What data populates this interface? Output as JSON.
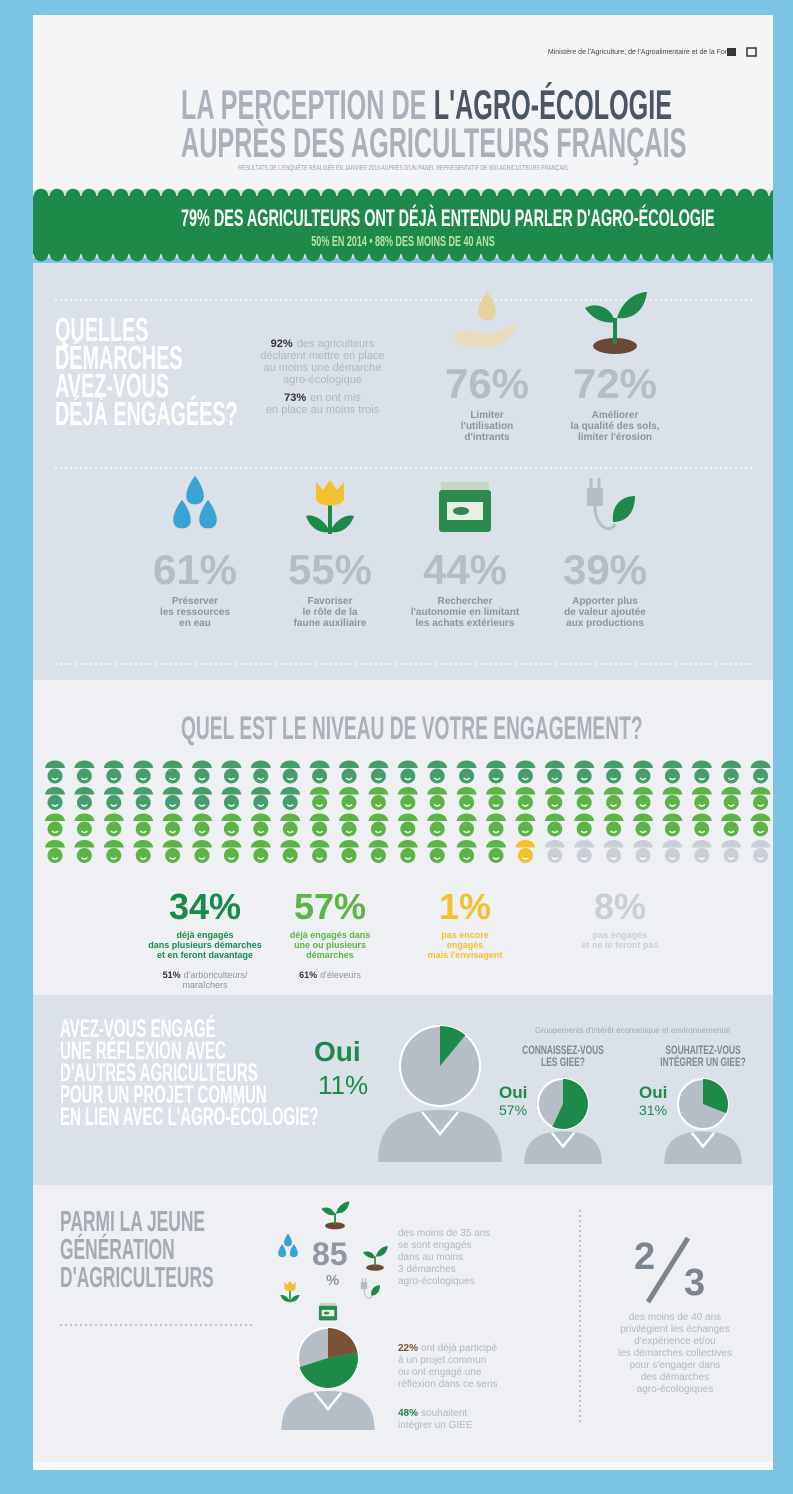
{
  "header": {
    "ministry": "Ministère de l'Agriculture, de l'Agroalimentaire et de la Forêt",
    "title_start": "LA PERCEPTION DE",
    "title_highlight": "L'AGRO-ÉCOLOGIE",
    "title_line2": "AUPRÈS DES AGRICULTEURS FRANÇAIS",
    "subtitle": "RÉSULTATS DE L'ENQUÊTE RÉALISÉE EN JANVIER 2016 AUPRÈS D'UN PANEL REPRÉSENTATIF DE 800 AGRICULTEURS FRANÇAIS"
  },
  "banner": {
    "headline": "79% DES AGRICULTEURS ONT DÉJÀ ENTENDU PARLER D'AGRO-ÉCOLOGIE",
    "subline": "50% EN 2014 • 88% DES MOINS DE 40 ANS"
  },
  "demarches": {
    "question": [
      "QUELLES",
      "DÉMARCHES",
      "AVEZ-VOUS",
      "DÉJÀ ENGAGÉES?"
    ],
    "intro": [
      {
        "strong": "92%",
        "lines": [
          "des agriculteurs",
          "déclarent mettre en place",
          "au moins une démarche",
          "agro-écologique"
        ]
      },
      {
        "strong": "73%",
        "lines": [
          "en ont mis",
          "en place au moins trois"
        ]
      }
    ],
    "items": [
      {
        "value": "76%",
        "label": [
          "Limiter",
          "l'utilisation",
          "d'intrants"
        ]
      },
      {
        "value": "72%",
        "label": [
          "Améliorer",
          "la qualité des sols,",
          "limiter l'érosion"
        ]
      },
      {
        "value": "61%",
        "label": [
          "Préserver",
          "les ressources",
          "en eau"
        ]
      },
      {
        "value": "55%",
        "label": [
          "Favoriser",
          "le rôle de la",
          "faune auxiliaire"
        ]
      },
      {
        "value": "44%",
        "label": [
          "Rechercher",
          "l'autonomie en limitant",
          "les achats extérieurs"
        ]
      },
      {
        "value": "39%",
        "label": [
          "Apporter plus",
          "de valeur ajoutée",
          "aux productions"
        ]
      }
    ]
  },
  "engagement": {
    "title": "QUEL EST LE NIVEAU DE VOTRE ENGAGEMENT?",
    "segments": [
      {
        "value": 34,
        "label": "34%",
        "color": "#1a8a4a",
        "text": [
          "déjà engagés",
          "dans plusieurs démarches",
          "et en feront davantage"
        ],
        "note_strong": "51%",
        "note": [
          "d'arboriculteurs/",
          "maraîchers"
        ]
      },
      {
        "value": 57,
        "label": "57%",
        "color": "#5cb346",
        "text": [
          "déjà engagés dans",
          "une ou plusieurs",
          "démarches"
        ],
        "note_strong": "61%",
        "note": [
          "d'éleveurs"
        ]
      },
      {
        "value": 1,
        "label": "1%",
        "color": "#f2c12e",
        "text": [
          "pas encore",
          "engagés",
          "mais l'envisagent"
        ]
      },
      {
        "value": 8,
        "label": "8%",
        "color": "#c9cfd6",
        "text": [
          "pas engagés",
          "et ne le feront pas"
        ]
      }
    ]
  },
  "collaboration": {
    "question": [
      "AVEZ-VOUS ENGAGÉ",
      "UNE RÉFLEXION AVEC",
      "D'AUTRES AGRICULTEURS",
      "POUR UN PROJET COMMUN",
      "EN LIEN AVEC L'AGRO-ÉCOLOGIE?"
    ],
    "color": "#1e8a4a",
    "main": {
      "answer": "Oui",
      "value": 11,
      "label": "11%"
    },
    "giee_caption": "Groupements d'intérêt économique et environnemental",
    "giee": [
      {
        "question": [
          "CONNAISSEZ-VOUS",
          "LES GIEE?"
        ],
        "answer": "Oui",
        "value": 57,
        "label": "57%"
      },
      {
        "question": [
          "SOUHAITEZ-VOUS",
          "INTÉGRER UN GIEE?"
        ],
        "answer": "Oui",
        "value": 31,
        "label": "31%"
      }
    ]
  },
  "youth": {
    "title": [
      "PARMI LA JEUNE",
      "GÉNÉRATION",
      "D'AGRICULTEURS"
    ],
    "share": {
      "number": "85",
      "percent_sign": "%",
      "text": [
        "des moins de 35 ans",
        "se sont engagés",
        "dans au moins",
        "3 démarches",
        "agro-écologiques"
      ]
    },
    "stats": [
      {
        "value": 22,
        "label": "22%",
        "color": "#7a5236",
        "text": [
          "ont déjà participé",
          "à un projet commun",
          "ou ont engagé une",
          "réflexion dans ce sens"
        ]
      },
      {
        "value": 48,
        "label": "48%",
        "color": "#1e8a4a",
        "text": [
          "souhaitent",
          "intégrer un GIEE"
        ]
      }
    ],
    "fraction": {
      "numerator": "2",
      "denominator": "3",
      "text": [
        "des moins de 40 ans",
        "privilégient les échanges",
        "d'expérience et/ou",
        "les démarches collectives",
        "pour s'engager dans",
        "des démarches",
        "agro-écologiques"
      ]
    }
  }
}
